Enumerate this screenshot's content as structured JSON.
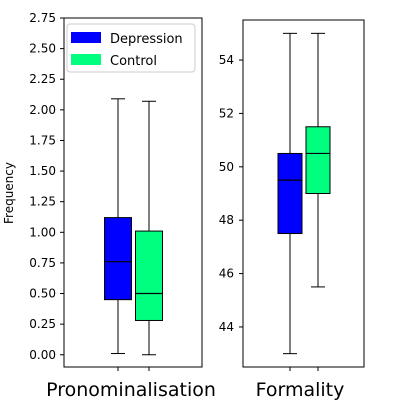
{
  "chart_data": [
    {
      "type": "box",
      "xlabel": "Pronominalisation",
      "ylabel": "Frequency",
      "ylim": [
        -0.1,
        2.75
      ],
      "yticks": [
        "0.00",
        "0.25",
        "0.50",
        "0.75",
        "1.00",
        "1.25",
        "1.50",
        "1.75",
        "2.00",
        "2.25",
        "2.50",
        "2.75"
      ],
      "legend": {
        "placement": "top-left",
        "entries": [
          "Depression",
          "Control"
        ]
      },
      "series": [
        {
          "name": "Depression",
          "color": "#0000ff",
          "min": 0.01,
          "q1": 0.45,
          "median": 0.76,
          "q3": 1.12,
          "max": 2.09
        },
        {
          "name": "Control",
          "color": "#00ff7f",
          "min": 0.0,
          "q1": 0.28,
          "median": 0.5,
          "q3": 1.01,
          "max": 2.07
        }
      ]
    },
    {
      "type": "box",
      "xlabel": "Formality",
      "ylabel": "",
      "ylim": [
        42.5,
        55.5
      ],
      "yticks": [
        "44",
        "46",
        "48",
        "50",
        "52",
        "54"
      ],
      "series": [
        {
          "name": "Depression",
          "color": "#0000ff",
          "min": 43.0,
          "q1": 47.5,
          "median": 49.5,
          "q3": 50.5,
          "max": 55.0
        },
        {
          "name": "Control",
          "color": "#00ff7f",
          "min": 45.5,
          "q1": 49.0,
          "median": 50.5,
          "q3": 51.5,
          "max": 55.0
        }
      ]
    }
  ]
}
